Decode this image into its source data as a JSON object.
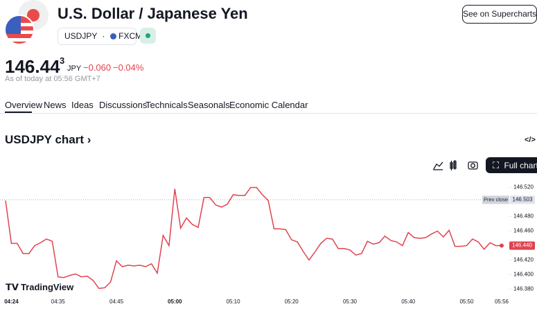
{
  "header": {
    "title": "U.S. Dollar / Japanese Yen",
    "symbol": "USDJPY",
    "separator": "·",
    "exchange": "FXCM",
    "button": "See on Supercharts"
  },
  "quote": {
    "price": "146.44",
    "price_sup": "3",
    "currency": "JPY",
    "change": "−0.060",
    "change_percent": "−0.04%",
    "as_of": "As of today at 05:56 GMT+7"
  },
  "tabs": [
    "Overview",
    "News",
    "Ideas",
    "Discussions",
    "Technicals",
    "Seasonals",
    "Economic Calendar"
  ],
  "chart_section": {
    "title": "USDJPY chart",
    "title_arrow": "›",
    "embed_icon": "</>",
    "full_chart": "Full chart",
    "brand": "TradingView"
  },
  "chart_data": {
    "type": "line",
    "color": "#e0434f",
    "categories": [
      null,
      "04:24",
      null,
      null,
      null,
      null,
      null,
      null,
      null,
      "04:35",
      null,
      null,
      null,
      null,
      null,
      null,
      null,
      null,
      null,
      "04:45",
      null,
      null,
      null,
      null,
      null,
      null,
      null,
      null,
      null,
      "05:00",
      null,
      null,
      null,
      null,
      null,
      null,
      null,
      null,
      null,
      "05:10",
      null,
      null,
      null,
      null,
      null,
      null,
      null,
      null,
      null,
      "05:20",
      null,
      null,
      null,
      null,
      null,
      null,
      null,
      null,
      null,
      "05:30",
      null,
      null,
      null,
      null,
      null,
      null,
      null,
      null,
      null,
      "05:40",
      null,
      null,
      null,
      null,
      null,
      null,
      null,
      null,
      null,
      "05:50",
      null,
      null,
      null,
      null,
      null,
      "05:56"
    ],
    "values": [
      146.502,
      146.443,
      146.443,
      146.429,
      146.429,
      146.44,
      146.444,
      146.449,
      146.446,
      146.397,
      146.396,
      146.399,
      146.401,
      146.397,
      146.398,
      146.392,
      146.381,
      146.382,
      146.39,
      146.419,
      146.411,
      146.413,
      146.412,
      146.413,
      146.411,
      146.415,
      146.402,
      146.454,
      146.44,
      146.518,
      146.464,
      146.478,
      146.469,
      146.465,
      146.506,
      146.506,
      146.496,
      146.493,
      146.497,
      146.51,
      146.509,
      146.509,
      146.52,
      146.52,
      146.51,
      146.502,
      146.463,
      146.463,
      146.462,
      146.448,
      146.445,
      146.432,
      146.42,
      146.431,
      146.443,
      146.45,
      146.449,
      146.436,
      146.436,
      146.434,
      146.427,
      146.429,
      146.446,
      146.442,
      146.444,
      146.453,
      146.447,
      146.445,
      146.44,
      146.458,
      146.451,
      146.45,
      146.451,
      146.456,
      146.46,
      146.452,
      146.461,
      146.439,
      146.439,
      146.44,
      146.449,
      146.445,
      146.435,
      146.444,
      146.44,
      146.44
    ],
    "last_value_label": "146.440",
    "prev_close": {
      "label": "Prev close",
      "value": 146.503,
      "value_label": "146.503"
    },
    "ylim": [
      146.37,
      146.533
    ],
    "yticks": [
      {
        "value": 146.52,
        "label": "146.520"
      },
      {
        "value": 146.48,
        "label": "146.480"
      },
      {
        "value": 146.46,
        "label": "146.460"
      },
      {
        "value": 146.42,
        "label": "146.420"
      },
      {
        "value": 146.4,
        "label": "146.400"
      },
      {
        "value": 146.38,
        "label": "146.380"
      }
    ]
  }
}
